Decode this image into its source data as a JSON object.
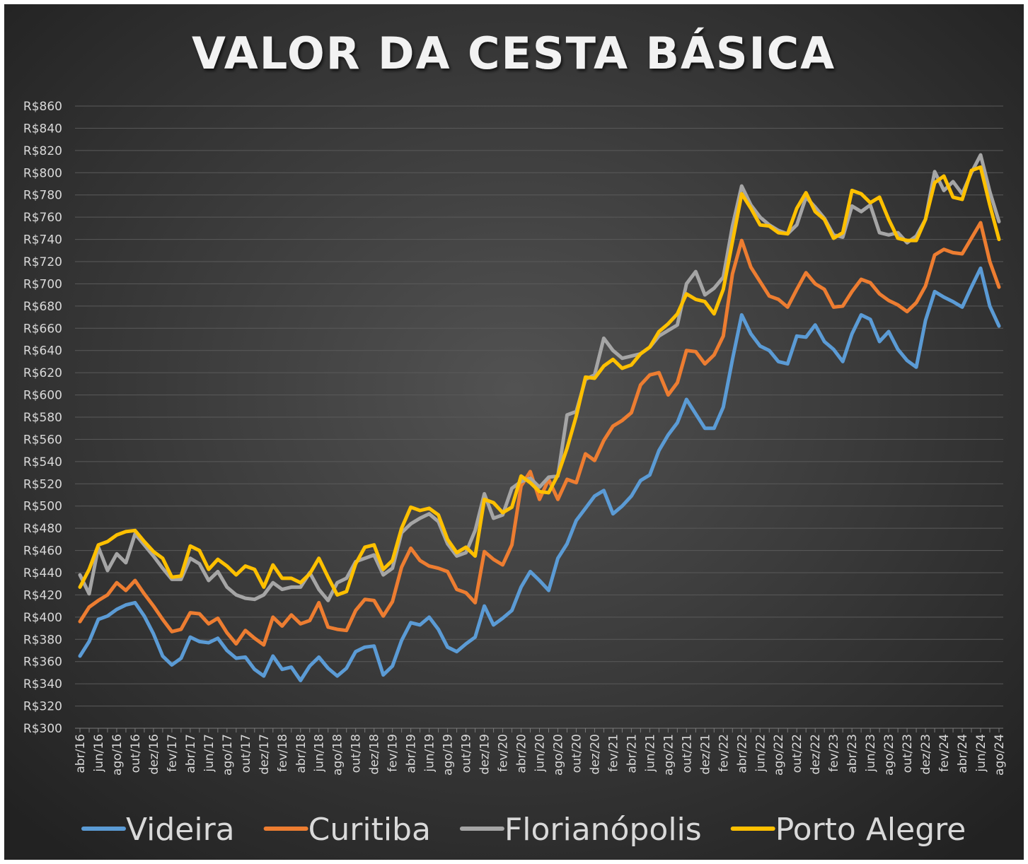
{
  "chart_data": {
    "type": "line",
    "title": "VALOR DA CESTA BÁSICA",
    "categories": [
      "abr/16",
      null,
      "jun/16",
      null,
      "ago/16",
      null,
      "out/16",
      null,
      "dez/16",
      null,
      "fev/17",
      null,
      "abr/17",
      null,
      "jun/17",
      null,
      "ago/17",
      null,
      "out/17",
      null,
      "dez/17",
      null,
      "fev/18",
      null,
      "abr/18",
      null,
      "jun/18",
      null,
      "ago/18",
      null,
      "out/18",
      null,
      "dez/18",
      null,
      "fev/19",
      null,
      "abr/19",
      null,
      "jun/19",
      null,
      "ago/19",
      null,
      "out/19",
      null,
      "dez/19",
      null,
      "fev/20",
      null,
      "abr/20",
      null,
      "jun/20",
      null,
      "ago/20",
      null,
      "out/20",
      null,
      "dez/20",
      null,
      "fev/21",
      null,
      "abr/21",
      null,
      "jun/21",
      null,
      "ago/21",
      null,
      "out/21",
      null,
      "dez/21",
      null,
      "fev/22",
      null,
      "abr/22",
      null,
      "jun/22",
      null,
      "ago/22",
      null,
      "out/22",
      null,
      "dez/22",
      null,
      "fev/23",
      null,
      "abr/23",
      null,
      "jun/23",
      null,
      "ago/23",
      null,
      "out/23",
      null,
      "dez/23",
      null,
      "fev/24",
      null,
      "abr/24",
      null,
      "jun/24",
      null,
      "ago/24"
    ],
    "series": [
      {
        "name": "Videira",
        "color": "#5b9bd5",
        "values": [
          365,
          378,
          398,
          401,
          407,
          411,
          413,
          401,
          385,
          365,
          357,
          363,
          382,
          378,
          377,
          381,
          370,
          363,
          364,
          353,
          347,
          365,
          353,
          355,
          343,
          356,
          364,
          354,
          347,
          354,
          369,
          373,
          374,
          348,
          356,
          379,
          395,
          393,
          400,
          389,
          373,
          369,
          376,
          382,
          410,
          393,
          399,
          406,
          427,
          441,
          433,
          424,
          453,
          466,
          487,
          498,
          509,
          514,
          493,
          500,
          509,
          523,
          528,
          550,
          564,
          575,
          596,
          583,
          570,
          570,
          589,
          632,
          672,
          655,
          644,
          640,
          630,
          628,
          653,
          652,
          663,
          648,
          641,
          630,
          655,
          672,
          668,
          648,
          657,
          641,
          631,
          625,
          667,
          693,
          688,
          684,
          679,
          697,
          714,
          680,
          662
        ]
      },
      {
        "name": "Curitiba",
        "color": "#ed7d31",
        "values": [
          396,
          409,
          415,
          420,
          431,
          424,
          433,
          421,
          410,
          398,
          387,
          389,
          404,
          403,
          394,
          399,
          386,
          376,
          388,
          381,
          375,
          400,
          392,
          402,
          394,
          397,
          413,
          391,
          389,
          388,
          406,
          416,
          415,
          401,
          414,
          445,
          462,
          451,
          446,
          444,
          441,
          425,
          422,
          413,
          459,
          452,
          447,
          465,
          518,
          531,
          506,
          524,
          506,
          524,
          521,
          547,
          541,
          559,
          572,
          577,
          584,
          609,
          618,
          620,
          600,
          611,
          640,
          639,
          628,
          636,
          653,
          709,
          739,
          715,
          702,
          689,
          686,
          679,
          695,
          710,
          700,
          695,
          679,
          680,
          693,
          704,
          701,
          691,
          685,
          681,
          675,
          683,
          698,
          726,
          731,
          728,
          727,
          741,
          755,
          720,
          697
        ]
      },
      {
        "name": "Florianópolis",
        "color": "#a5a5a5",
        "values": [
          438,
          421,
          463,
          442,
          457,
          449,
          475,
          465,
          455,
          444,
          434,
          434,
          453,
          448,
          433,
          441,
          427,
          420,
          417,
          416,
          420,
          431,
          425,
          427,
          427,
          440,
          425,
          415,
          431,
          435,
          450,
          453,
          456,
          438,
          444,
          476,
          484,
          489,
          493,
          486,
          466,
          455,
          458,
          478,
          511,
          489,
          492,
          516,
          522,
          525,
          517,
          526,
          527,
          582,
          585,
          614,
          618,
          651,
          640,
          633,
          635,
          637,
          643,
          653,
          658,
          663,
          700,
          711,
          690,
          696,
          706,
          752,
          788,
          771,
          760,
          753,
          748,
          745,
          753,
          778,
          769,
          759,
          744,
          742,
          770,
          765,
          771,
          746,
          744,
          746,
          737,
          743,
          758,
          801,
          784,
          792,
          781,
          800,
          816,
          783,
          756
        ]
      },
      {
        "name": "Porto Alegre",
        "color": "#ffc000",
        "values": [
          427,
          443,
          465,
          468,
          474,
          477,
          478,
          468,
          459,
          453,
          436,
          437,
          464,
          460,
          443,
          452,
          446,
          438,
          446,
          443,
          427,
          447,
          435,
          435,
          431,
          439,
          453,
          436,
          420,
          423,
          448,
          463,
          465,
          443,
          451,
          480,
          499,
          496,
          498,
          492,
          470,
          458,
          463,
          455,
          506,
          503,
          494,
          499,
          527,
          521,
          513,
          512,
          528,
          552,
          581,
          616,
          615,
          626,
          632,
          624,
          627,
          637,
          643,
          657,
          664,
          673,
          691,
          686,
          684,
          673,
          695,
          738,
          781,
          768,
          753,
          752,
          746,
          745,
          768,
          782,
          765,
          758,
          741,
          746,
          784,
          781,
          773,
          778,
          758,
          741,
          739,
          739,
          758,
          791,
          797,
          778,
          776,
          802,
          805,
          771,
          740
        ]
      }
    ],
    "ylim": [
      300,
      860
    ],
    "yticks": [
      {
        "value": 300,
        "label": "R$300"
      },
      {
        "value": 320,
        "label": "R$320"
      },
      {
        "value": 340,
        "label": "R$340"
      },
      {
        "value": 360,
        "label": "R$360"
      },
      {
        "value": 380,
        "label": "R$380"
      },
      {
        "value": 400,
        "label": "R$400"
      },
      {
        "value": 420,
        "label": "R$420"
      },
      {
        "value": 440,
        "label": "R$440"
      },
      {
        "value": 460,
        "label": "R$460"
      },
      {
        "value": 480,
        "label": "R$480"
      },
      {
        "value": 500,
        "label": "R$500"
      },
      {
        "value": 520,
        "label": "R$520"
      },
      {
        "value": 540,
        "label": "R$540"
      },
      {
        "value": 560,
        "label": "R$560"
      },
      {
        "value": 580,
        "label": "R$580"
      },
      {
        "value": 600,
        "label": "R$600"
      },
      {
        "value": 620,
        "label": "R$620"
      },
      {
        "value": 640,
        "label": "R$640"
      },
      {
        "value": 660,
        "label": "R$660"
      },
      {
        "value": 680,
        "label": "R$680"
      },
      {
        "value": 700,
        "label": "R$700"
      },
      {
        "value": 720,
        "label": "R$720"
      },
      {
        "value": 740,
        "label": "R$740"
      },
      {
        "value": 760,
        "label": "R$760"
      },
      {
        "value": 780,
        "label": "R$780"
      },
      {
        "value": 800,
        "label": "R$800"
      },
      {
        "value": 820,
        "label": "R$820"
      },
      {
        "value": 840,
        "label": "R$840"
      },
      {
        "value": 860,
        "label": "R$860"
      }
    ],
    "grid": true,
    "legend": "bottom"
  }
}
